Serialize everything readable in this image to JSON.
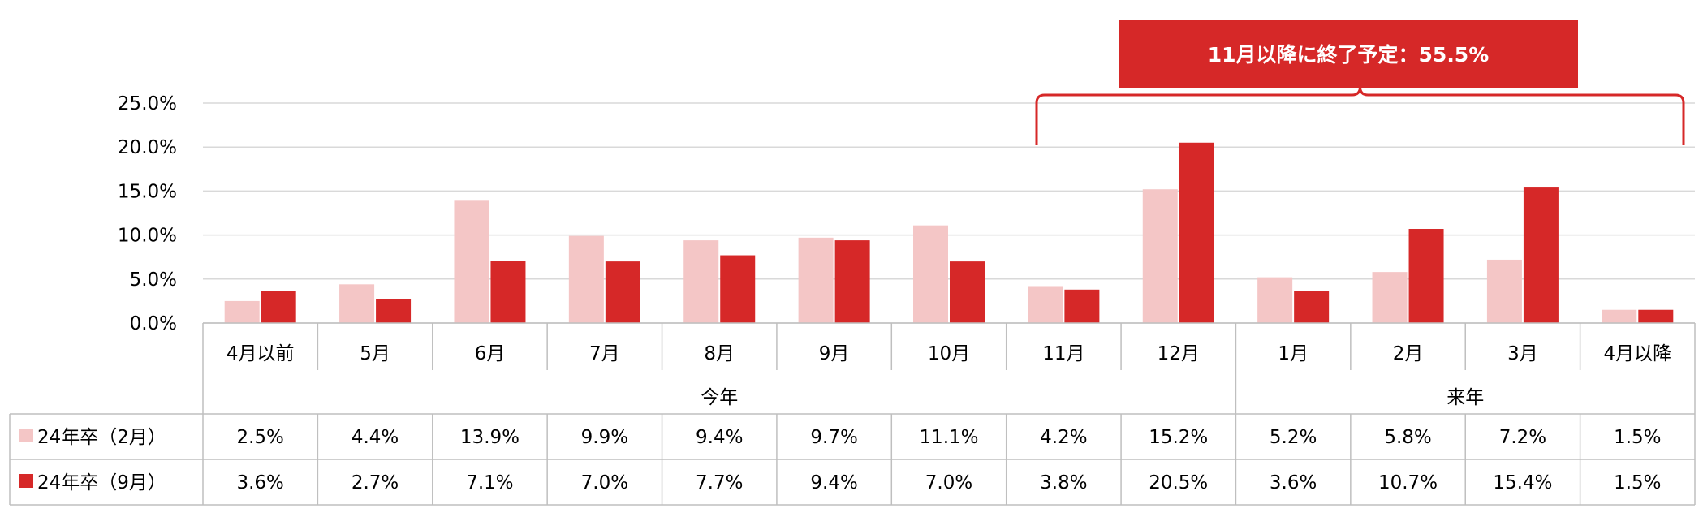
{
  "chart_data": {
    "type": "bar",
    "categories": [
      "4月以前",
      "5月",
      "6月",
      "7月",
      "8月",
      "9月",
      "10月",
      "11月",
      "12月",
      "1月",
      "2月",
      "3月",
      "4月以降"
    ],
    "groups": [
      {
        "label": "今年",
        "from": 0,
        "to": 8
      },
      {
        "label": "来年",
        "from": 9,
        "to": 12
      }
    ],
    "series": [
      {
        "name": "24年卒（2月）",
        "color": "#F4C6C6",
        "values": [
          2.5,
          4.4,
          13.9,
          9.9,
          9.4,
          9.7,
          11.1,
          4.2,
          15.2,
          5.2,
          5.8,
          7.2,
          1.5
        ],
        "labels": [
          "2.5%",
          "4.4%",
          "13.9%",
          "9.9%",
          "9.4%",
          "9.7%",
          "11.1%",
          "4.2%",
          "15.2%",
          "5.2%",
          "5.8%",
          "7.2%",
          "1.5%"
        ]
      },
      {
        "name": "24年卒（9月）",
        "color": "#D62828",
        "values": [
          3.6,
          2.7,
          7.1,
          7.0,
          7.7,
          9.4,
          7.0,
          3.8,
          20.5,
          3.6,
          10.7,
          15.4,
          1.5
        ],
        "labels": [
          "3.6%",
          "2.7%",
          "7.1%",
          "7.0%",
          "7.7%",
          "9.4%",
          "7.0%",
          "3.8%",
          "20.5%",
          "3.6%",
          "10.7%",
          "15.4%",
          "1.5%"
        ]
      }
    ],
    "yticks": [
      "0.0%",
      "5.0%",
      "10.0%",
      "15.0%",
      "20.0%",
      "25.0%"
    ],
    "ylim": [
      0,
      25
    ],
    "grid": true,
    "annotation": {
      "text": "11月以降に終了予定：55.5%",
      "from_category": 7,
      "to_category": 12,
      "color": "#D62828"
    }
  }
}
